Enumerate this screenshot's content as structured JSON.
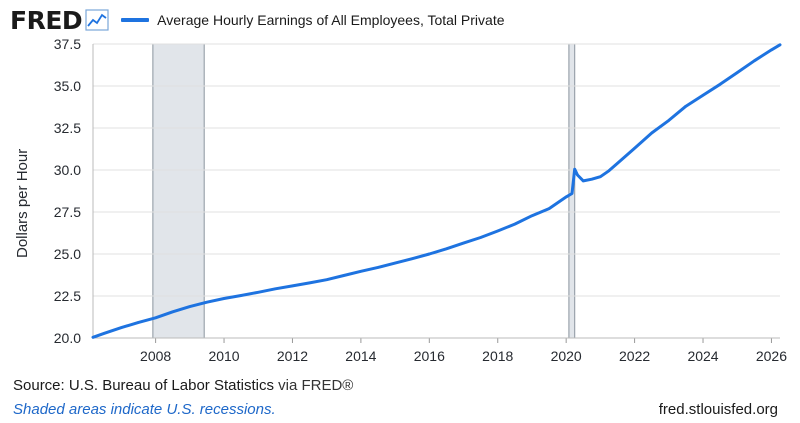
{
  "header": {
    "logo": "FRED",
    "logo_icon": "line-chart-icon",
    "series_name": "Average Hourly Earnings of All Employees, Total Private"
  },
  "footer": {
    "source": "Source: U.S. Bureau of Labor Statistics",
    "via": " via FRED®",
    "note": "Shaded areas indicate U.S. recessions.",
    "url": "fred.stlouisfed.org"
  },
  "colors": {
    "line": "#1e73e0",
    "recession": "#e1e5ea",
    "grid": "#e0e0e0"
  },
  "chart_data": {
    "type": "line",
    "ylabel": "Dollars per Hour",
    "xlabel": "",
    "x_range": [
      2006.17,
      2026.25
    ],
    "ylim": [
      20.0,
      37.5
    ],
    "yticks": [
      20.0,
      22.5,
      25.0,
      27.5,
      30.0,
      32.5,
      35.0,
      37.5
    ],
    "xticks": [
      2008,
      2010,
      2012,
      2014,
      2016,
      2018,
      2020,
      2022,
      2024,
      2026
    ],
    "grid": true,
    "legend": "top-left",
    "recessions": [
      [
        2007.92,
        2009.42
      ],
      [
        2020.08,
        2020.25
      ]
    ],
    "series": [
      {
        "name": "Average Hourly Earnings of All Employees, Total Private",
        "points": [
          [
            2006.17,
            20.04
          ],
          [
            2006.5,
            20.28
          ],
          [
            2007.0,
            20.62
          ],
          [
            2007.5,
            20.93
          ],
          [
            2008.0,
            21.2
          ],
          [
            2008.5,
            21.56
          ],
          [
            2009.0,
            21.87
          ],
          [
            2009.5,
            22.13
          ],
          [
            2010.0,
            22.35
          ],
          [
            2010.5,
            22.53
          ],
          [
            2011.0,
            22.72
          ],
          [
            2011.5,
            22.93
          ],
          [
            2012.0,
            23.1
          ],
          [
            2012.5,
            23.28
          ],
          [
            2013.0,
            23.47
          ],
          [
            2013.5,
            23.72
          ],
          [
            2014.0,
            23.97
          ],
          [
            2014.5,
            24.2
          ],
          [
            2015.0,
            24.46
          ],
          [
            2015.5,
            24.72
          ],
          [
            2016.0,
            25.0
          ],
          [
            2016.5,
            25.31
          ],
          [
            2017.0,
            25.65
          ],
          [
            2017.5,
            25.98
          ],
          [
            2018.0,
            26.37
          ],
          [
            2018.5,
            26.78
          ],
          [
            2019.0,
            27.28
          ],
          [
            2019.5,
            27.7
          ],
          [
            2020.0,
            28.4
          ],
          [
            2020.17,
            28.6
          ],
          [
            2020.25,
            30.05
          ],
          [
            2020.33,
            29.7
          ],
          [
            2020.5,
            29.35
          ],
          [
            2020.75,
            29.45
          ],
          [
            2021.0,
            29.6
          ],
          [
            2021.25,
            29.95
          ],
          [
            2021.5,
            30.4
          ],
          [
            2022.0,
            31.3
          ],
          [
            2022.5,
            32.2
          ],
          [
            2023.0,
            32.95
          ],
          [
            2023.5,
            33.8
          ],
          [
            2024.0,
            34.45
          ],
          [
            2024.5,
            35.1
          ],
          [
            2025.0,
            35.8
          ],
          [
            2025.5,
            36.5
          ],
          [
            2026.0,
            37.15
          ],
          [
            2026.25,
            37.45
          ]
        ]
      }
    ]
  }
}
